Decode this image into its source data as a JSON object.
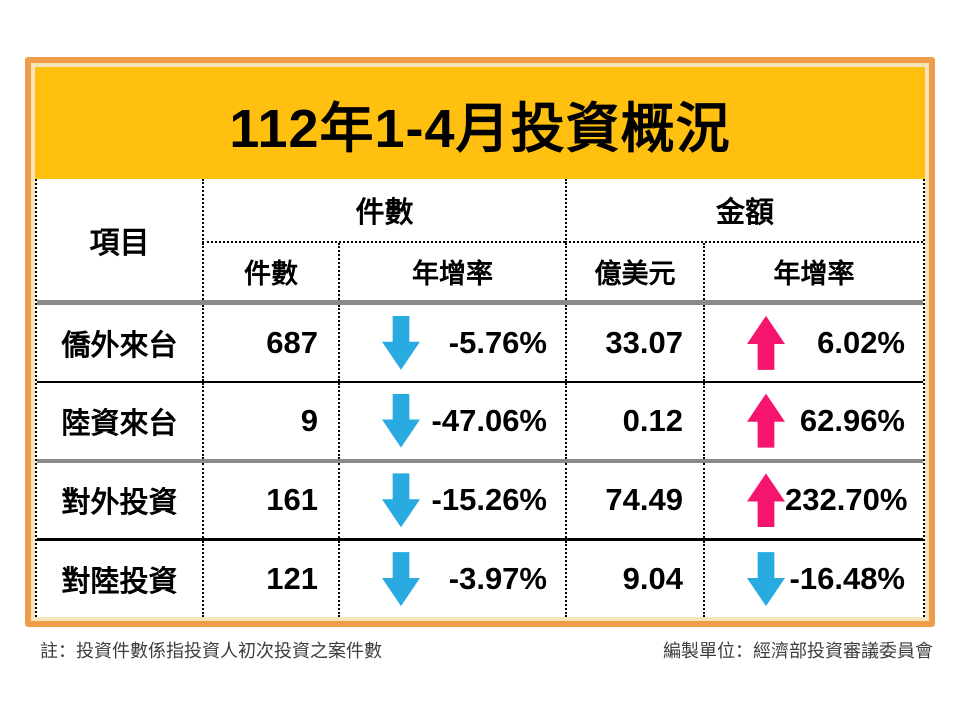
{
  "title": "112年1-4月投資概況",
  "table": {
    "col_item": "項目",
    "group_cases": "件數",
    "group_amount": "金額",
    "sub_cases_count": "件數",
    "sub_cases_yoy": "年增率",
    "sub_amount_usd": "億美元",
    "sub_amount_yoy": "年增率",
    "rows": [
      {
        "item": "僑外來台",
        "cases": "687",
        "cases_trend": "down",
        "cases_yoy": "-5.76%",
        "amount": "33.07",
        "amount_trend": "up",
        "amount_yoy": "6.02%"
      },
      {
        "item": "陸資來台",
        "cases": "9",
        "cases_trend": "down",
        "cases_yoy": "-47.06%",
        "amount": "0.12",
        "amount_trend": "up",
        "amount_yoy": "62.96%"
      },
      {
        "item": "對外投資",
        "cases": "161",
        "cases_trend": "down",
        "cases_yoy": "-15.26%",
        "amount": "74.49",
        "amount_trend": "up",
        "amount_yoy": "232.70%"
      },
      {
        "item": "對陸投資",
        "cases": "121",
        "cases_trend": "down",
        "cases_yoy": "-3.97%",
        "amount": "9.04",
        "amount_trend": "down",
        "amount_yoy": "-16.48%"
      }
    ]
  },
  "footer": {
    "note": "註：投資件數係指投資人初次投資之案件數",
    "source": "編製單位：經濟部投資審議委員會"
  },
  "colors": {
    "band": "#FFC010",
    "border": "#EF9D49",
    "cream": "#F5E5BC",
    "rule": "#8A8A8A",
    "up": "#F5146E",
    "down": "#29ABE2"
  },
  "chart_data": {
    "type": "table",
    "title": "112年1-4月投資概況",
    "columns": [
      "項目",
      "件數-件數",
      "件數-年增率",
      "金額-億美元",
      "金額-年增率"
    ],
    "rows": [
      [
        "僑外來台",
        687,
        "-5.76%",
        33.07,
        "6.02%"
      ],
      [
        "陸資來台",
        9,
        "-47.06%",
        0.12,
        "62.96%"
      ],
      [
        "對外投資",
        161,
        "-15.26%",
        74.49,
        "232.70%"
      ],
      [
        "對陸投資",
        121,
        "-3.97%",
        9.04,
        "-16.48%"
      ]
    ],
    "annotations": [
      "註：投資件數係指投資人初次投資之案件數",
      "編製單位：經濟部投資審議委員會"
    ],
    "legend_hint": "blue down-arrow = decline, pink up-arrow = growth"
  }
}
